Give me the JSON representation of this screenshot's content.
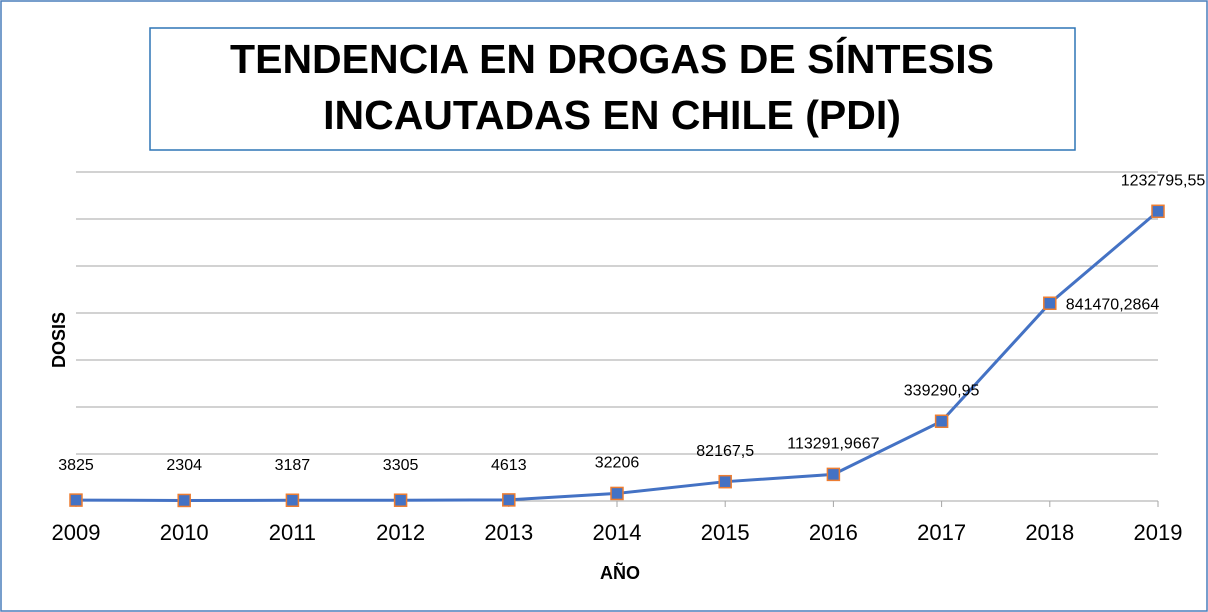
{
  "chart_data": {
    "type": "line",
    "title": [
      "TENDENCIA EN  DROGAS DE SÍNTESIS",
      "INCAUTADAS EN CHILE (PDI)"
    ],
    "x_label": "AÑO",
    "y_label": "DOSIS",
    "categories": [
      "2009",
      "2010",
      "2011",
      "2012",
      "2013",
      "2014",
      "2015",
      "2016",
      "2017",
      "2018",
      "2019"
    ],
    "values": [
      3825,
      2304,
      3187,
      3305,
      4613,
      32206,
      82167.5,
      113291.9667,
      339290.95,
      841470.2864,
      1232795.55
    ],
    "value_labels": [
      "3825",
      "2304",
      "3187",
      "3305",
      "4613",
      "32206",
      "82167,5",
      "113291,9667",
      "339290,95",
      "841470,2864",
      "1232795,55"
    ],
    "color": "#4472c4",
    "marker_edge_color": "#ed7d31",
    "ylim": [
      0,
      1400000
    ],
    "yticks": [
      0,
      200000,
      400000,
      600000,
      800000,
      1000000,
      1200000,
      1400000
    ],
    "grid": true
  }
}
